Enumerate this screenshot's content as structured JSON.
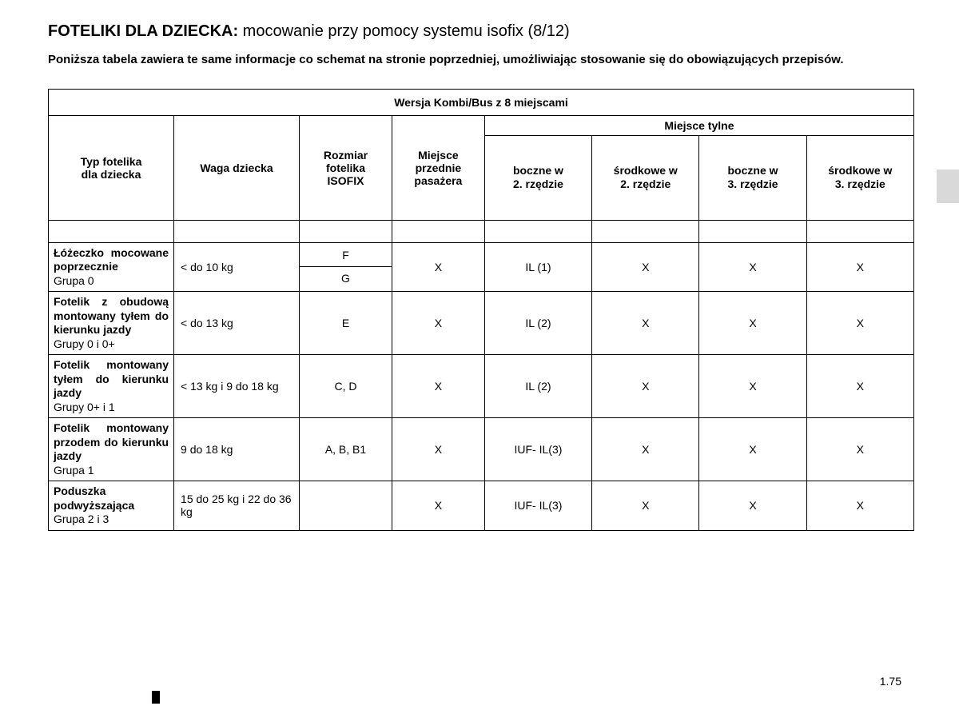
{
  "title_bold": "FOTELIKI DLA DZIECKA:",
  "title_reg": " mocowanie przy pomocy systemu isofix (8/12)",
  "subtitle": "Poniższa tabela zawiera te same informacje co schemat na stronie poprzedniej, umożliwiając stosowanie się do obowiązujących przepisów.",
  "table": {
    "super_header": "Wersja Kombi/Bus z 8 miejscami",
    "rear_group_header": "Miejsce tylne",
    "columns": {
      "seat_type": "Typ fotelika\ndla dziecka",
      "weight": "Waga dziecka",
      "isofix": "Rozmiar\nfotelika\nISOFIX",
      "front": "Miejsce\nprzednie\npasażera",
      "rear1": "boczne w\n2. rzędzie",
      "rear2": "środkowe w\n2. rzędzie",
      "rear3": "boczne w\n3. rzędzie",
      "rear4": "środkowe w\n3. rzędzie"
    },
    "rows": [
      {
        "type_main": "Łóżeczko mocowane poprzecznie",
        "type_sub": "Grupa 0",
        "weight": "< do 10 kg",
        "isofix_split": true,
        "isofix_top": "F",
        "isofix_bottom": "G",
        "front": "X",
        "r1": "IL (1)",
        "r2": "X",
        "r3": "X",
        "r4": "X"
      },
      {
        "type_main": "Fotelik z obudową montowany tyłem do kierunku jazdy",
        "type_sub": "Grupy 0 i 0+",
        "weight": "< do 13 kg",
        "isofix": "E",
        "front": "X",
        "r1": "IL (2)",
        "r2": "X",
        "r3": "X",
        "r4": "X",
        "tall": true
      },
      {
        "type_main": "Fotelik montowany tyłem do kierunku jazdy",
        "type_sub": "Grupy 0+ i 1",
        "weight": "< 13 kg i 9 do 18 kg",
        "isofix": "C, D",
        "front": "X",
        "r1": "IL (2)",
        "r2": "X",
        "r3": "X",
        "r4": "X",
        "tall": true
      },
      {
        "type_main": "Fotelik montowany przodem do kierunku jazdy",
        "type_sub": "Grupa 1",
        "weight": "9 do 18 kg",
        "isofix": "A, B, B1",
        "front": "X",
        "r1": "IUF- IL(3)",
        "r2": "X",
        "r3": "X",
        "r4": "X",
        "tall": true
      },
      {
        "type_main": "Poduszka podwyższająca",
        "type_sub": "Grupa 2 i 3",
        "weight": "15 do 25 kg i 22 do 36 kg",
        "isofix": "",
        "front": "X",
        "r1": "IUF- IL(3)",
        "r2": "X",
        "r3": "X",
        "r4": "X"
      }
    ]
  },
  "page_number": "1.75",
  "colors": {
    "text": "#000000",
    "background": "#ffffff",
    "border": "#000000",
    "side_tab": "#d9d9d9"
  },
  "column_widths_pct": [
    14.5,
    14.5,
    10.7,
    10.7,
    12.4,
    12.4,
    12.4,
    12.4
  ]
}
